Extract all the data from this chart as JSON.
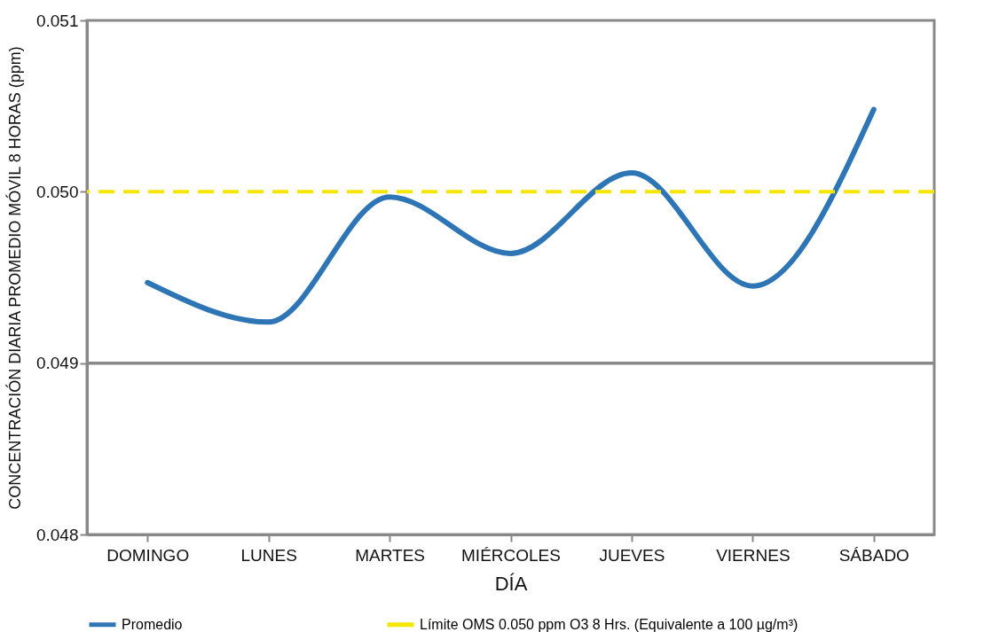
{
  "chart_data": {
    "type": "line",
    "xlabel": "DÍA",
    "ylabel": "CONCENTRACIÓN DIARIA PROMEDIO MÓVIL 8 HORAS (ppm)",
    "categories": [
      "DOMINGO",
      "LUNES",
      "MARTES",
      "MIÉRCOLES",
      "JUEVES",
      "VIERNES",
      "SÁBADO"
    ],
    "series": [
      {
        "name": "Promedio",
        "color": "#2e75b6",
        "values": [
          0.04947,
          0.04924,
          0.04997,
          0.04964,
          0.05011,
          0.04945,
          0.05048
        ]
      }
    ],
    "ylim": [
      0.048,
      0.051
    ],
    "yticks": [
      {
        "value": 0.048,
        "label": "0.048"
      },
      {
        "value": 0.049,
        "label": "0.049"
      },
      {
        "value": 0.05,
        "label": "0.050"
      },
      {
        "value": 0.051,
        "label": "0.051"
      }
    ],
    "legend": "bottom",
    "marker": "none",
    "line_style": "solid",
    "ref_lines": [
      {
        "axis": "y",
        "value": 0.049,
        "color": "#888888",
        "line_style": "solid"
      },
      {
        "axis": "y",
        "value": 0.05,
        "label": "Límite OMS 0.050 ppm O3 8 Hrs. (Equivalente a 100 µg/m³)",
        "color": "#f5e600",
        "line_style": "dashed"
      }
    ]
  }
}
